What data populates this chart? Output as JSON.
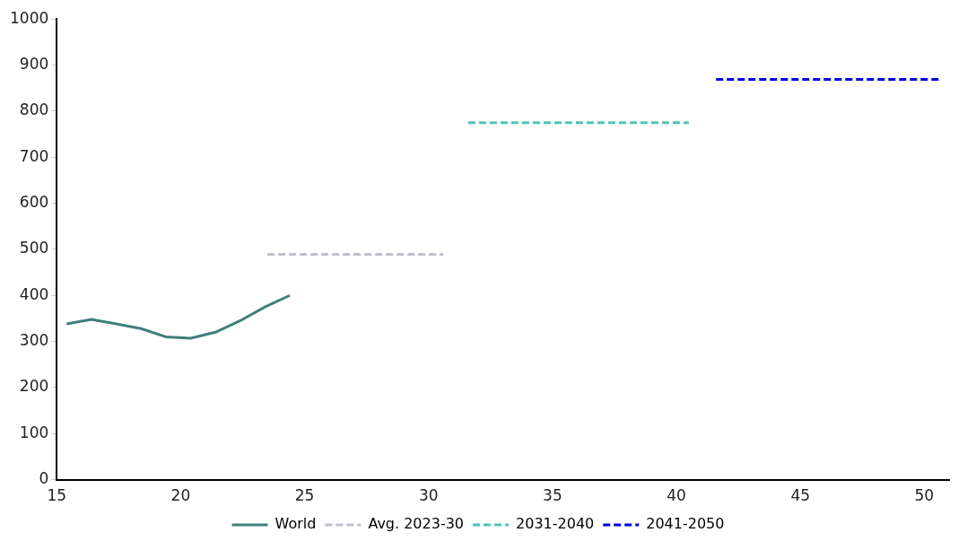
{
  "chart_data": {
    "type": "line",
    "xlim": [
      15,
      51
    ],
    "xticks": [
      15,
      20,
      25,
      30,
      35,
      40,
      45,
      50
    ],
    "ylim": [
      0,
      1000
    ],
    "yticks": [
      0,
      100,
      200,
      300,
      400,
      500,
      600,
      700,
      800,
      900,
      1000
    ],
    "grid": false,
    "legend": "bottom",
    "marker": "none",
    "series": [
      {
        "name": "World",
        "color": "#3f7f7a",
        "line_style": "solid",
        "x": [
          15.4,
          16.4,
          17.4,
          18.4,
          19.4,
          20.4,
          21.4,
          22.4,
          23.4,
          24.4
        ],
        "values": [
          338,
          348,
          338,
          328,
          310,
          307,
          320,
          345,
          375,
          400
        ]
      },
      {
        "name": "Avg. 2023-30",
        "color": "#c0c0cc",
        "line_style": "dashed",
        "x": [
          23.5,
          30.6
        ],
        "values": [
          489,
          489
        ]
      },
      {
        "name": "2031-2040",
        "color": "#4fc4b8",
        "line_style": "dashed",
        "x": [
          31.6,
          40.5
        ],
        "values": [
          775,
          775
        ]
      },
      {
        "name": "2041-2050",
        "color": "#0000e0",
        "line_style": "dashed",
        "x": [
          41.6,
          50.6
        ],
        "values": [
          869,
          869
        ]
      }
    ]
  }
}
